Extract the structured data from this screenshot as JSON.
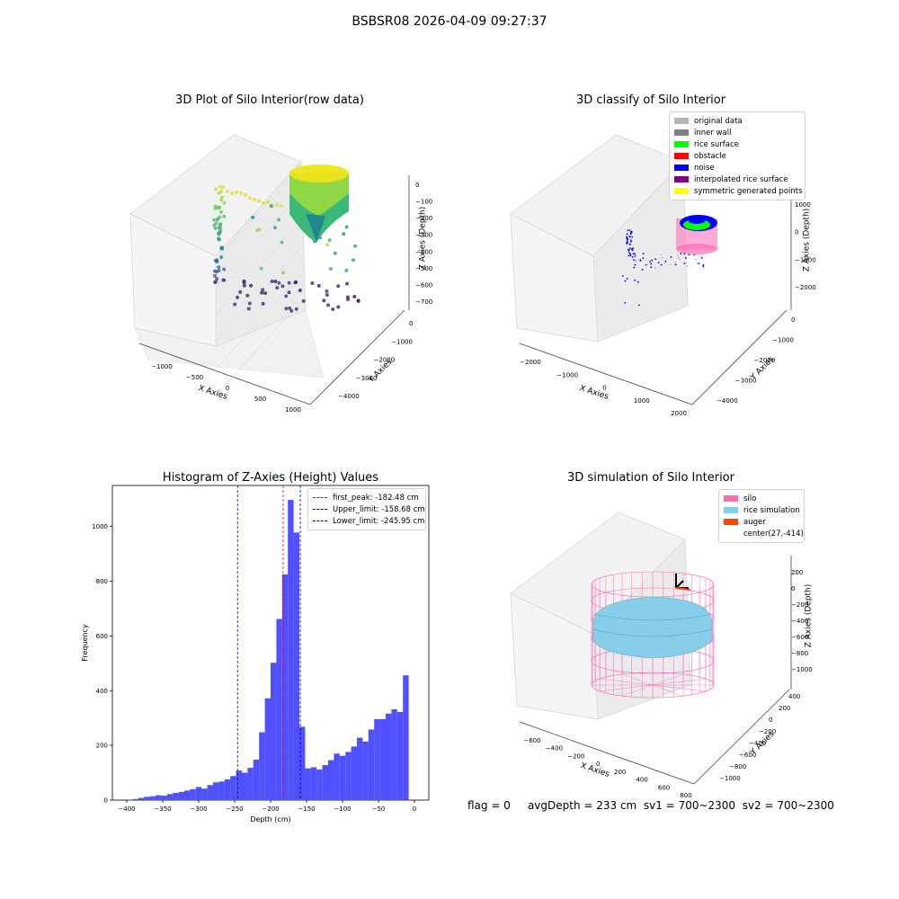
{
  "figure_title": "BSBSR08 2026-04-09 09:27:37",
  "status": {
    "flag": "flag = 0",
    "avg_depth": "avgDepth = 233 cm",
    "sv1": "sv1 = 700~2300",
    "sv2": "sv2 = 700~2300"
  },
  "colors": {
    "hist_bar": "#5050ff",
    "first_peak_line": "#ff0000",
    "limit_lines": "#00008b",
    "silo": "#ff69b4",
    "rice": "#87ceeb",
    "auger": "#ff4500"
  },
  "chart_data": [
    {
      "type": "scatter",
      "title": "3D Plot of Silo Interior(row data)",
      "xlabel": "X Axies",
      "ylabel": "Y Axies",
      "zlabel": "Z Axies (Depth)",
      "x_ticks": [
        "−1000",
        "−500",
        "0",
        "500",
        "1000"
      ],
      "y_ticks": [
        "0",
        "−1000",
        "−2000",
        "−3000",
        "−4000"
      ],
      "z_ticks": [
        "0",
        "−100",
        "−200",
        "−300",
        "−400",
        "−500",
        "−600",
        "−700"
      ],
      "colormap": "viridis"
    },
    {
      "type": "scatter",
      "title": "3D classify of Silo Interior",
      "xlabel": "X Axies",
      "ylabel": "Y Axies",
      "zlabel": "Z Axies (Depth)",
      "x_ticks": [
        "−2000",
        "−1000",
        "0",
        "1000",
        "2000"
      ],
      "y_ticks": [
        "0",
        "−1000",
        "−2000",
        "−3000",
        "−4000"
      ],
      "z_ticks": [
        "1000",
        "0",
        "−1000",
        "−2000"
      ],
      "legend": [
        {
          "label": "original data",
          "color": "#b4b4b4"
        },
        {
          "label": "inner wall",
          "color": "#808080"
        },
        {
          "label": "rice surface",
          "color": "#00ff00"
        },
        {
          "label": "obstacle",
          "color": "#ff0000"
        },
        {
          "label": "noise",
          "color": "#0000ff"
        },
        {
          "label": "interpolated rice surface",
          "color": "#800080"
        },
        {
          "label": "symmetric generated points",
          "color": "#ffff00"
        }
      ]
    },
    {
      "type": "bar",
      "title": "Histogram of Z-Axies (Height) Values",
      "xlabel": "Depth (cm)",
      "ylabel": "Frequency",
      "xlim": [
        -420,
        20
      ],
      "ylim": [
        0,
        1150
      ],
      "x_ticks": [
        -400,
        -350,
        -300,
        -250,
        -200,
        -150,
        -100,
        -50,
        0
      ],
      "y_ticks": [
        0,
        200,
        400,
        600,
        800,
        1000
      ],
      "bin_width": 8,
      "bin_start": -400,
      "values": [
        2,
        4,
        8,
        12,
        14,
        18,
        16,
        22,
        26,
        30,
        35,
        40,
        48,
        42,
        55,
        65,
        68,
        76,
        88,
        108,
        100,
        118,
        148,
        248,
        372,
        502,
        662,
        825,
        1097,
        978,
        268,
        116,
        120,
        112,
        128,
        146,
        170,
        162,
        176,
        196,
        228,
        214,
        258,
        296,
        296,
        316,
        332,
        322,
        456
      ],
      "vlines": [
        {
          "label": "first_peak: -182.48 cm",
          "x": -182.48,
          "color": "#ff0000"
        },
        {
          "label": "Upper_limit: -158.68 cm",
          "x": -158.68,
          "color": "#00008b"
        },
        {
          "label": "Lower_limit: -245.95 cm",
          "x": -245.95,
          "color": "#00008b"
        }
      ]
    },
    {
      "type": "scatter",
      "title": "3D simulation of Silo Interior",
      "xlabel": "X Axies",
      "ylabel": "Y Axies",
      "zlabel": "Z Axies (Depth)",
      "x_ticks": [
        "−600",
        "−400",
        "−200",
        "0",
        "200",
        "400",
        "600",
        "800"
      ],
      "y_ticks": [
        "400",
        "200",
        "0",
        "−200",
        "−400",
        "−600",
        "−800",
        "−1000"
      ],
      "z_ticks": [
        "200",
        "0",
        "−200",
        "−400",
        "−600",
        "−800",
        "−1000"
      ],
      "legend": [
        {
          "label": "silo",
          "color": "#ff69b4"
        },
        {
          "label": "rice simulation",
          "color": "#87ceeb"
        },
        {
          "label": "auger",
          "color": "#ff4500"
        },
        {
          "label": "center(27,-414)",
          "color": ""
        }
      ]
    }
  ]
}
